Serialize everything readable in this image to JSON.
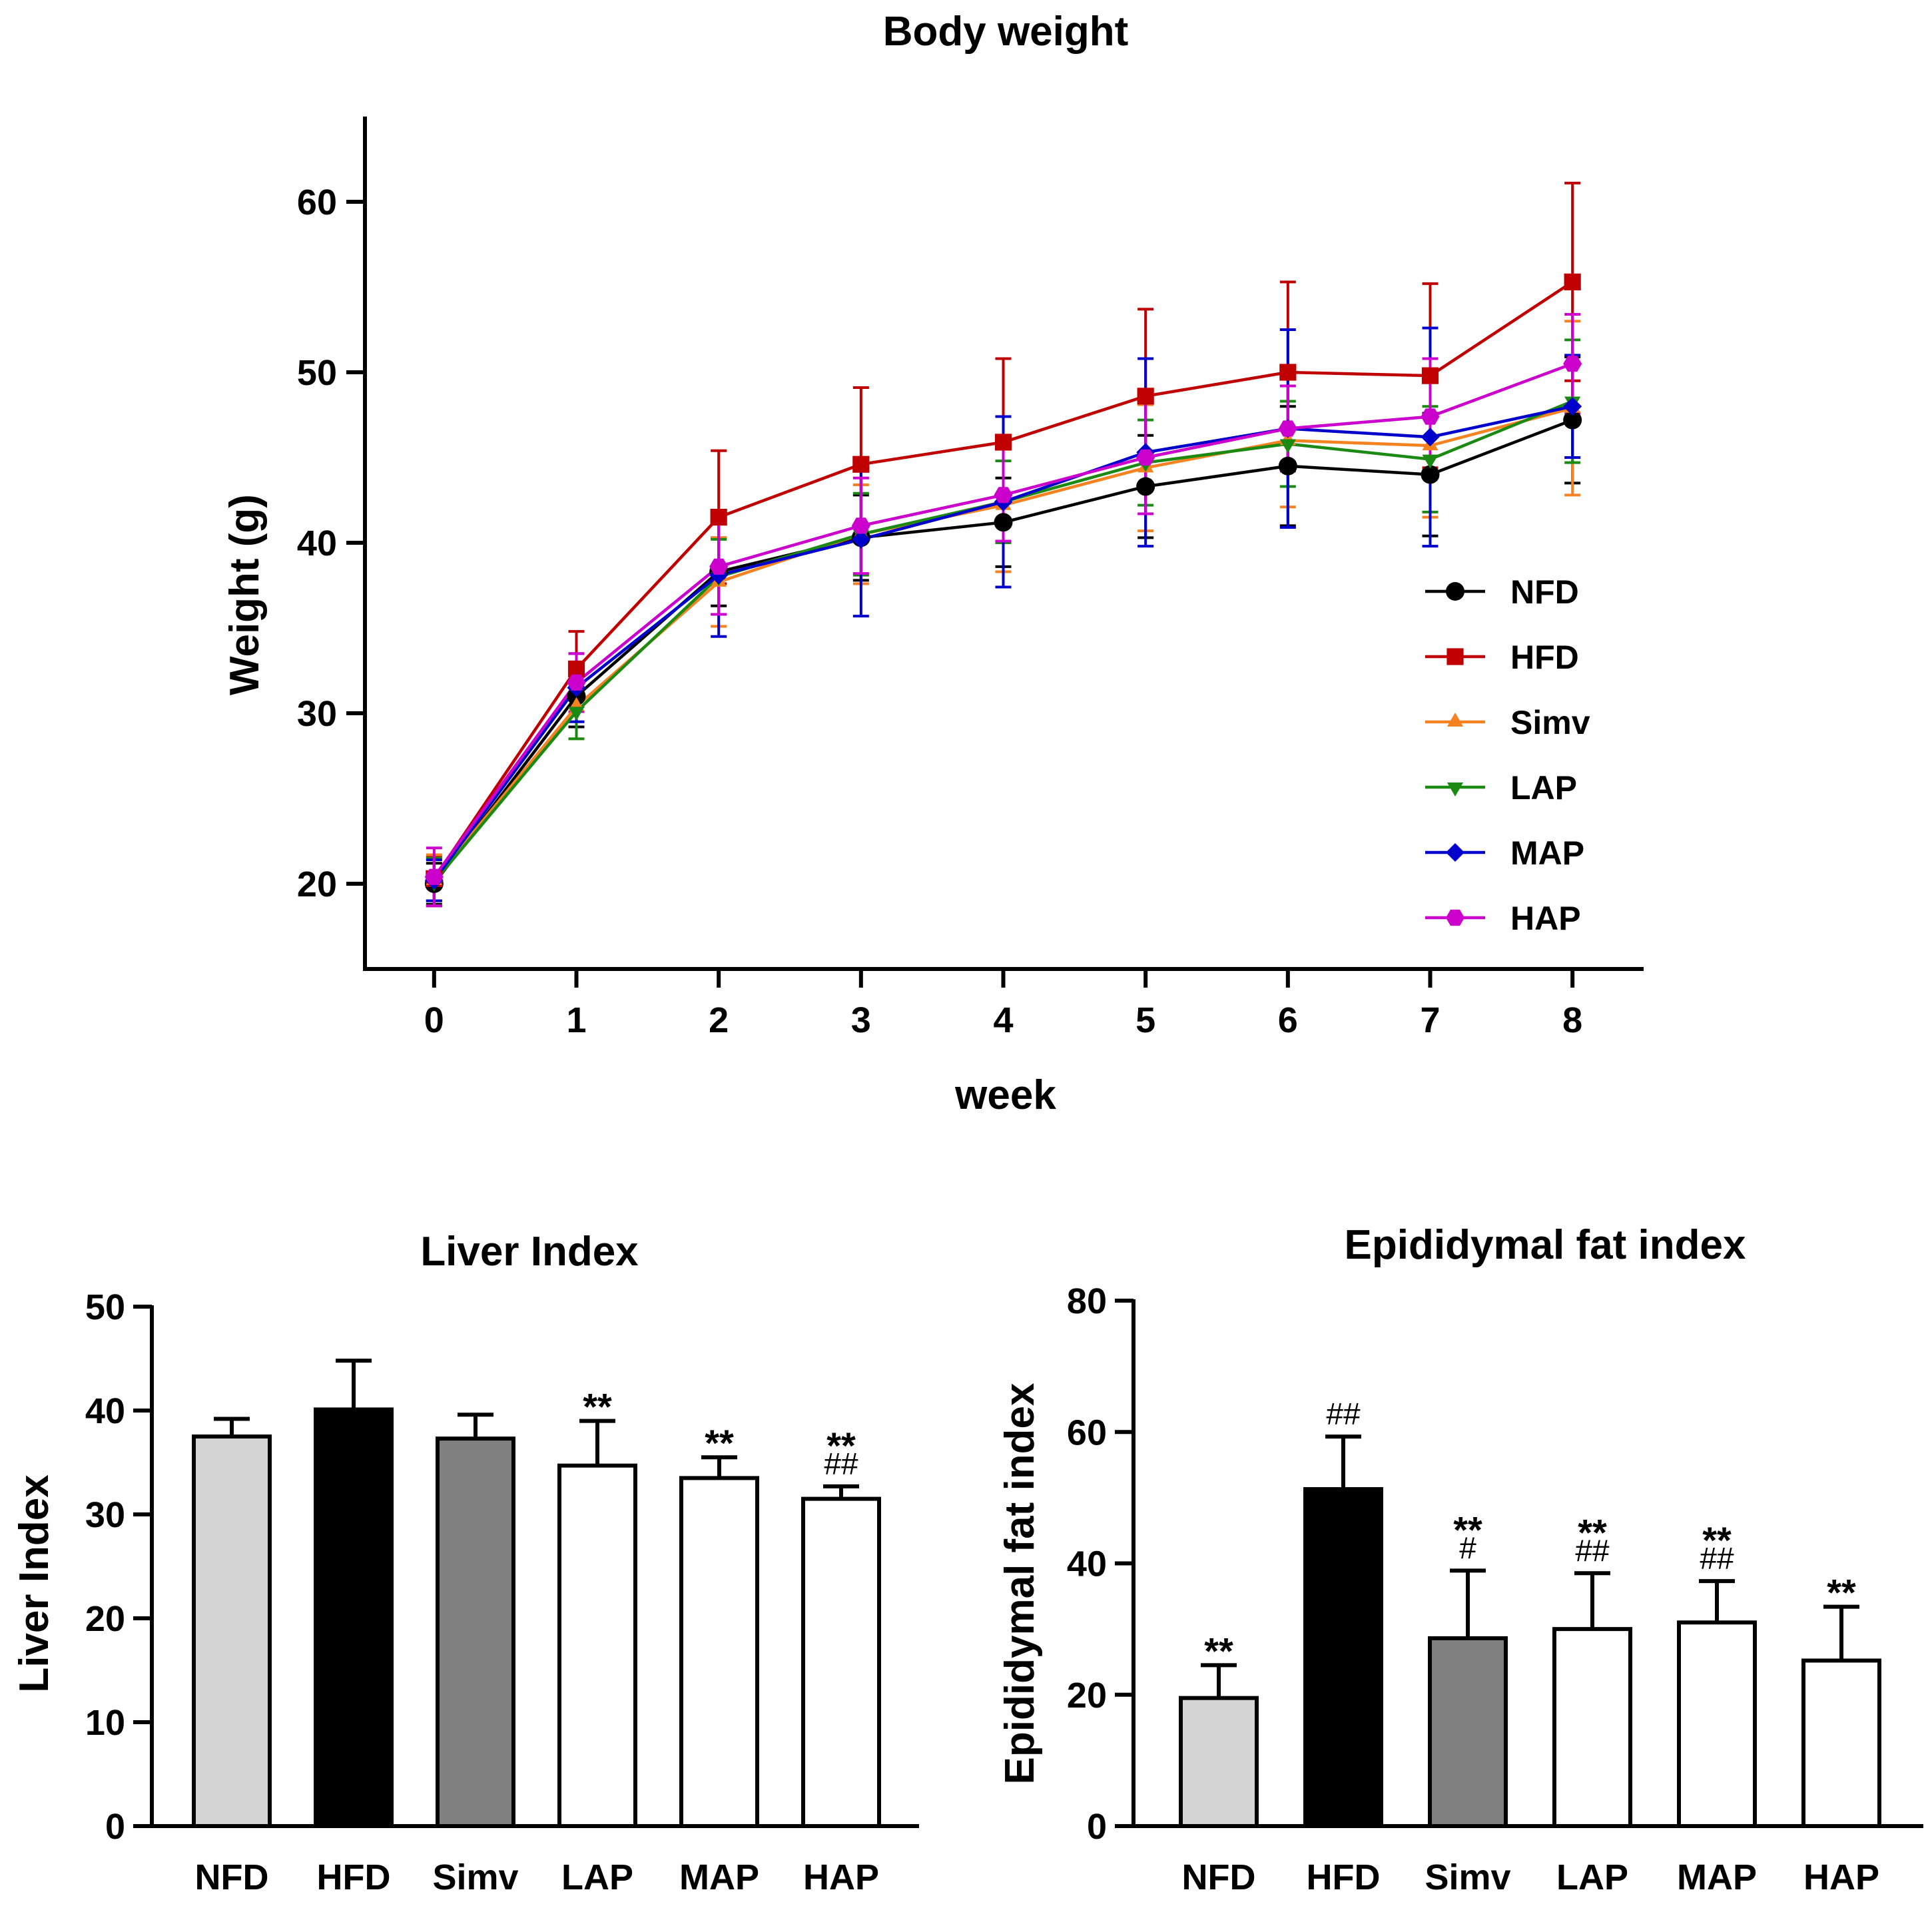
{
  "chart_data": [
    {
      "type": "line",
      "title": "Body weight",
      "xlabel": "week",
      "ylabel": "Weight (g)",
      "x": [
        0,
        1,
        2,
        3,
        4,
        5,
        6,
        7,
        8
      ],
      "xlim": [
        -0.5,
        8.5
      ],
      "ylim": [
        15,
        65
      ],
      "yticks": [
        20,
        30,
        40,
        50,
        60
      ],
      "legend_position": "lower-right",
      "series": [
        {
          "name": "NFD",
          "color": "#000000",
          "marker": "circle",
          "values": [
            20.0,
            31.0,
            38.3,
            40.3,
            41.2,
            43.3,
            44.5,
            44.0,
            47.2
          ],
          "err": [
            1.2,
            1.8,
            2.0,
            2.5,
            2.6,
            3.0,
            3.5,
            3.6,
            3.7
          ]
        },
        {
          "name": "HFD",
          "color": "#C00000",
          "marker": "square",
          "values": [
            20.3,
            32.6,
            41.5,
            44.6,
            45.9,
            48.6,
            50.0,
            49.8,
            55.3
          ],
          "err": [
            1.3,
            2.2,
            3.9,
            4.5,
            4.9,
            5.1,
            5.3,
            5.4,
            5.8
          ]
        },
        {
          "name": "Simv",
          "color": "#F58220",
          "marker": "triangle",
          "values": [
            20.2,
            30.4,
            37.7,
            40.5,
            42.2,
            44.4,
            46.0,
            45.7,
            47.9
          ],
          "err": [
            1.5,
            1.9,
            2.6,
            2.9,
            3.9,
            3.7,
            3.9,
            4.2,
            5.1
          ]
        },
        {
          "name": "LAP",
          "color": "#1A8A12",
          "marker": "triangle-down",
          "values": [
            20.1,
            30.1,
            38.0,
            40.5,
            42.4,
            44.7,
            45.8,
            44.9,
            48.3
          ],
          "err": [
            1.4,
            1.6,
            2.2,
            2.4,
            2.4,
            2.5,
            2.5,
            3.1,
            3.6
          ]
        },
        {
          "name": "MAP",
          "color": "#0000CC",
          "marker": "diamond",
          "values": [
            20.2,
            31.5,
            38.1,
            40.2,
            42.4,
            45.3,
            46.7,
            46.2,
            48.0
          ],
          "err": [
            1.2,
            2.0,
            3.6,
            4.5,
            5.0,
            5.5,
            5.8,
            6.4,
            3.0
          ]
        },
        {
          "name": "HAP",
          "color": "#CC00CC",
          "marker": "hexagon",
          "values": [
            20.4,
            31.8,
            38.6,
            41.0,
            42.8,
            45.0,
            46.7,
            47.4,
            50.5
          ],
          "err": [
            1.7,
            1.7,
            2.8,
            2.8,
            2.7,
            3.3,
            2.5,
            3.4,
            2.9
          ]
        }
      ]
    },
    {
      "type": "bar",
      "title": "Liver Index",
      "xlabel": "",
      "ylabel": "Liver Index",
      "categories": [
        "NFD",
        "HFD",
        "Simv",
        "LAP",
        "MAP",
        "HAP"
      ],
      "values": [
        37.5,
        40.1,
        37.3,
        34.7,
        33.5,
        31.5
      ],
      "err": [
        1.7,
        4.7,
        2.3,
        4.3,
        2.0,
        1.2
      ],
      "fills": [
        "#D4D4D4",
        "#000000",
        "#808080",
        "#FFFFFF",
        "#FFFFFF",
        "#FFFFFF"
      ],
      "annotations": [
        [
          "",
          ""
        ],
        [
          "",
          ""
        ],
        [
          "",
          ""
        ],
        [
          "**",
          ""
        ],
        [
          "**",
          ""
        ],
        [
          "**",
          "##"
        ]
      ],
      "ylim": [
        0,
        50
      ],
      "yticks": [
        0,
        10,
        20,
        30,
        40,
        50
      ]
    },
    {
      "type": "bar",
      "title": "Epididymal fat index",
      "xlabel": "",
      "ylabel": "Epididymal fat index",
      "categories": [
        "NFD",
        "HFD",
        "Simv",
        "LAP",
        "MAP",
        "HAP"
      ],
      "values": [
        19.5,
        51.3,
        28.6,
        30.0,
        31.0,
        25.2
      ],
      "err": [
        5.0,
        8.0,
        10.3,
        8.5,
        6.3,
        8.2
      ],
      "fills": [
        "#D4D4D4",
        "#000000",
        "#808080",
        "#FFFFFF",
        "#FFFFFF",
        "#FFFFFF"
      ],
      "annotations": [
        [
          "**",
          ""
        ],
        [
          "",
          "##"
        ],
        [
          "**",
          "#"
        ],
        [
          "**",
          "##"
        ],
        [
          "**",
          "##"
        ],
        [
          "**",
          ""
        ]
      ],
      "ylim": [
        0,
        80
      ],
      "yticks": [
        0,
        20,
        40,
        60,
        80
      ]
    }
  ]
}
